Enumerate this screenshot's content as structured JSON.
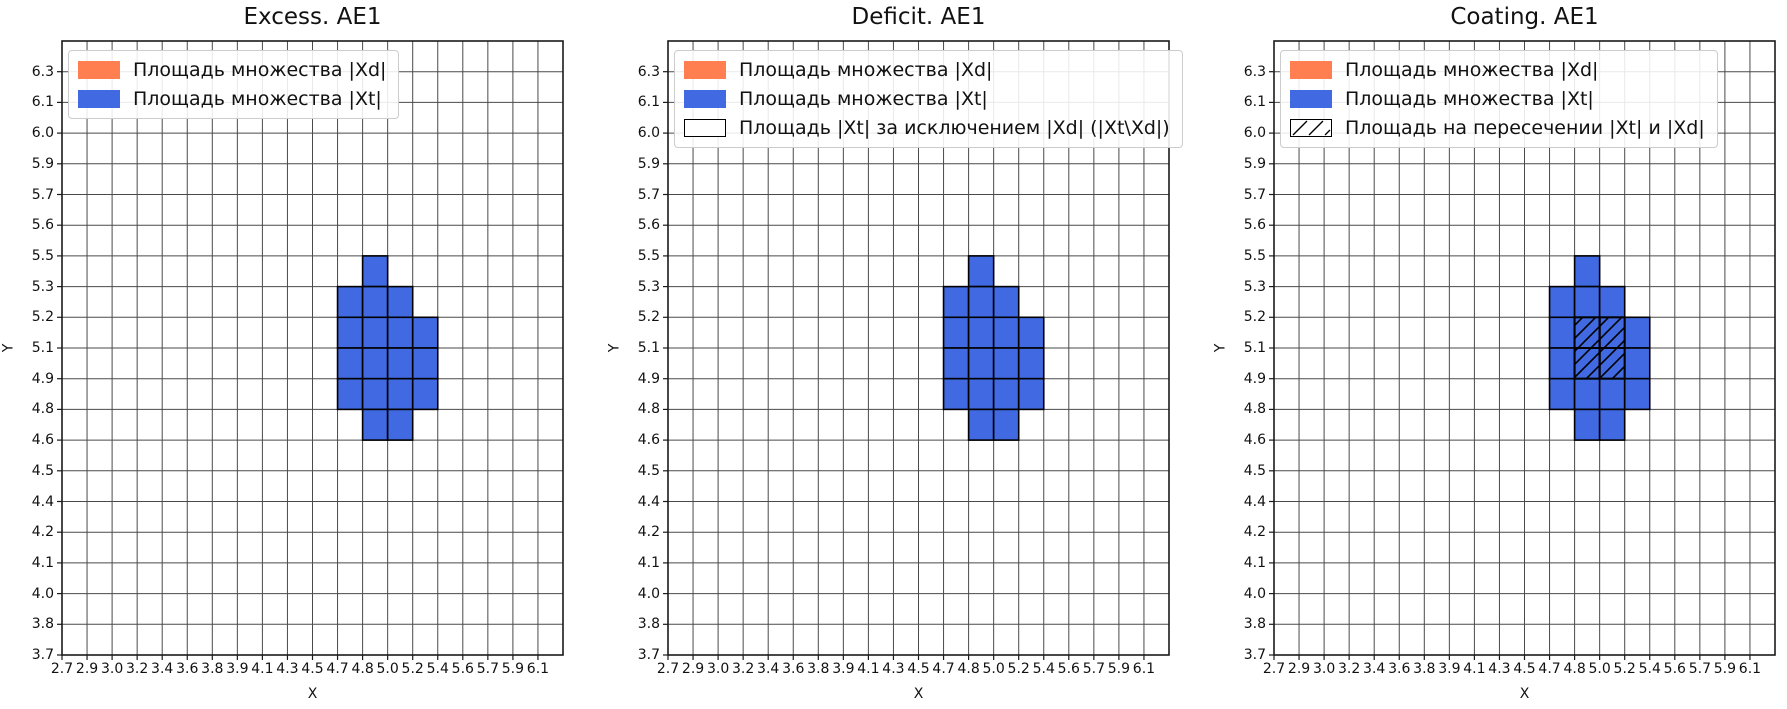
{
  "figure": {
    "background": "#ffffff",
    "colors": {
      "xd_orange": "#FF7F50",
      "xt_blue": "#4169E1",
      "grid_line": "#4a4a4a",
      "spine": "#1a1a1a",
      "cell_edge": "#000000",
      "legend_border": "#cccccc",
      "text": "#111111"
    }
  },
  "axes_common": {
    "x_label": "X",
    "y_label": "Y",
    "x_ticks": [
      "2.7",
      "2.9",
      "3.0",
      "3.2",
      "3.4",
      "3.6",
      "3.8",
      "3.9",
      "4.1",
      "4.3",
      "4.5",
      "4.7",
      "4.8",
      "5.0",
      "5.2",
      "5.4",
      "5.6",
      "5.7",
      "5.9",
      "6.1"
    ],
    "y_ticks": [
      "6.3",
      "6.1",
      "6.0",
      "5.9",
      "5.7",
      "5.6",
      "5.5",
      "5.3",
      "5.2",
      "5.1",
      "4.9",
      "4.8",
      "4.6",
      "4.5",
      "4.4",
      "4.2",
      "4.1",
      "4.0",
      "3.8",
      "3.7"
    ],
    "grid": true
  },
  "chart_data": [
    {
      "type": "heatmap",
      "title": "Excess. AE1",
      "xlabel": "X",
      "ylabel": "Y",
      "xlim": [
        2.7,
        6.28
      ],
      "ylim": [
        3.7,
        6.44
      ],
      "grid": true,
      "legend_position": "upper left",
      "legend": [
        {
          "swatch": "solid",
          "color": "#FF7F50",
          "label": "Площадь множества |Xd|"
        },
        {
          "swatch": "solid",
          "color": "#4169E1",
          "label": "Площадь множества  |Xt|"
        }
      ],
      "blue_cells": [
        [
          4.8,
          5.0,
          5.3,
          5.5
        ],
        [
          4.7,
          4.8,
          5.2,
          5.3
        ],
        [
          4.8,
          5.0,
          5.2,
          5.3
        ],
        [
          5.0,
          5.2,
          5.2,
          5.3
        ],
        [
          4.7,
          4.8,
          5.1,
          5.2
        ],
        [
          4.8,
          5.0,
          5.1,
          5.2
        ],
        [
          5.0,
          5.2,
          5.1,
          5.2
        ],
        [
          5.2,
          5.4,
          5.1,
          5.2
        ],
        [
          4.7,
          4.8,
          4.9,
          5.1
        ],
        [
          4.8,
          5.0,
          4.9,
          5.1
        ],
        [
          5.0,
          5.2,
          4.9,
          5.1
        ],
        [
          5.2,
          5.4,
          4.9,
          5.1
        ],
        [
          4.7,
          4.8,
          4.8,
          4.9
        ],
        [
          4.8,
          5.0,
          4.8,
          4.9
        ],
        [
          5.0,
          5.2,
          4.8,
          4.9
        ],
        [
          5.2,
          5.4,
          4.8,
          4.9
        ],
        [
          4.8,
          5.0,
          4.6,
          4.8
        ],
        [
          5.0,
          5.2,
          4.6,
          4.8
        ]
      ],
      "hatched_cells": []
    },
    {
      "type": "heatmap",
      "title": "Deficit. AE1",
      "xlabel": "X",
      "ylabel": "Y",
      "xlim": [
        2.7,
        6.28
      ],
      "ylim": [
        3.7,
        6.44
      ],
      "grid": true,
      "legend_position": "upper left",
      "legend": [
        {
          "swatch": "solid",
          "color": "#FF7F50",
          "label": "Площадь множества |Xd|"
        },
        {
          "swatch": "solid",
          "color": "#4169E1",
          "label": "Площадь множества  |Xt|"
        },
        {
          "swatch": "outline",
          "color": "#ffffff",
          "label": "Площадь |Xt| за исключением |Xd| (|Xt\\Xd|)"
        }
      ],
      "blue_cells": [
        [
          4.8,
          5.0,
          5.3,
          5.5
        ],
        [
          4.7,
          4.8,
          5.2,
          5.3
        ],
        [
          4.8,
          5.0,
          5.2,
          5.3
        ],
        [
          5.0,
          5.2,
          5.2,
          5.3
        ],
        [
          4.7,
          4.8,
          5.1,
          5.2
        ],
        [
          4.8,
          5.0,
          5.1,
          5.2
        ],
        [
          5.0,
          5.2,
          5.1,
          5.2
        ],
        [
          5.2,
          5.4,
          5.1,
          5.2
        ],
        [
          4.7,
          4.8,
          4.9,
          5.1
        ],
        [
          4.8,
          5.0,
          4.9,
          5.1
        ],
        [
          5.0,
          5.2,
          4.9,
          5.1
        ],
        [
          5.2,
          5.4,
          4.9,
          5.1
        ],
        [
          4.7,
          4.8,
          4.8,
          4.9
        ],
        [
          4.8,
          5.0,
          4.8,
          4.9
        ],
        [
          5.0,
          5.2,
          4.8,
          4.9
        ],
        [
          5.2,
          5.4,
          4.8,
          4.9
        ],
        [
          4.8,
          5.0,
          4.6,
          4.8
        ],
        [
          5.0,
          5.2,
          4.6,
          4.8
        ]
      ],
      "hatched_cells": []
    },
    {
      "type": "heatmap",
      "title": "Coating. AE1",
      "xlabel": "X",
      "ylabel": "Y",
      "xlim": [
        2.7,
        6.28
      ],
      "ylim": [
        3.7,
        6.44
      ],
      "grid": true,
      "legend_position": "upper left",
      "legend": [
        {
          "swatch": "solid",
          "color": "#FF7F50",
          "label": "Площадь множества |Xd|"
        },
        {
          "swatch": "solid",
          "color": "#4169E1",
          "label": "Площадь множества  |Xt|"
        },
        {
          "swatch": "hatch",
          "color": "#ffffff",
          "label": "Площадь на пересечении |Xt| и |Xd|"
        }
      ],
      "blue_cells": [
        [
          4.8,
          5.0,
          5.3,
          5.5
        ],
        [
          4.7,
          4.8,
          5.2,
          5.3
        ],
        [
          4.8,
          5.0,
          5.2,
          5.3
        ],
        [
          5.0,
          5.2,
          5.2,
          5.3
        ],
        [
          4.7,
          4.8,
          5.1,
          5.2
        ],
        [
          4.8,
          5.0,
          5.1,
          5.2
        ],
        [
          5.0,
          5.2,
          5.1,
          5.2
        ],
        [
          5.2,
          5.4,
          5.1,
          5.2
        ],
        [
          4.7,
          4.8,
          4.9,
          5.1
        ],
        [
          4.8,
          5.0,
          4.9,
          5.1
        ],
        [
          5.0,
          5.2,
          4.9,
          5.1
        ],
        [
          5.2,
          5.4,
          4.9,
          5.1
        ],
        [
          4.7,
          4.8,
          4.8,
          4.9
        ],
        [
          4.8,
          5.0,
          4.8,
          4.9
        ],
        [
          5.0,
          5.2,
          4.8,
          4.9
        ],
        [
          5.2,
          5.4,
          4.8,
          4.9
        ],
        [
          4.8,
          5.0,
          4.6,
          4.8
        ],
        [
          5.0,
          5.2,
          4.6,
          4.8
        ]
      ],
      "hatched_cells": [
        [
          4.8,
          5.0,
          5.1,
          5.2
        ],
        [
          5.0,
          5.2,
          5.1,
          5.2
        ],
        [
          4.8,
          5.0,
          4.9,
          5.1
        ],
        [
          5.0,
          5.2,
          4.9,
          5.1
        ]
      ]
    }
  ]
}
